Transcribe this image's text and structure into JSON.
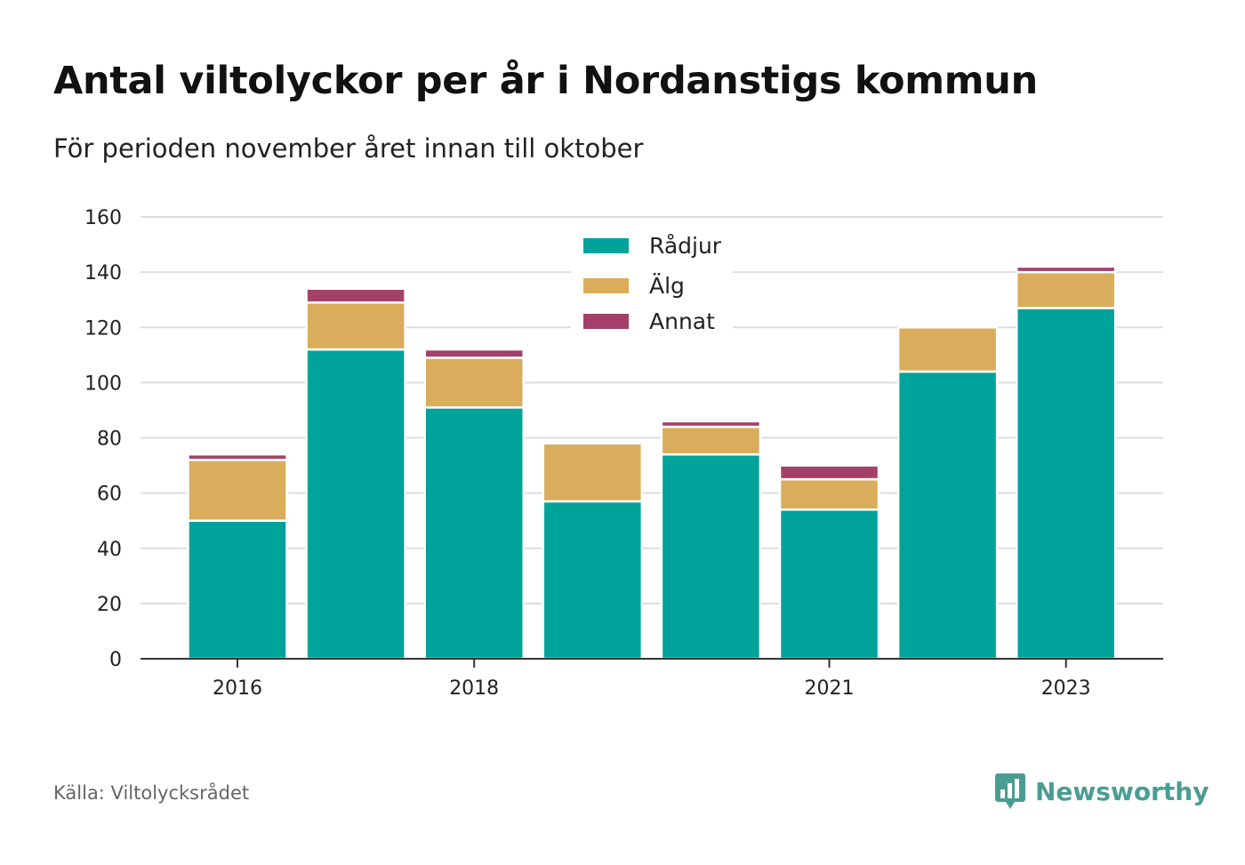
{
  "header": {
    "title": "Antal viltolyckor per år i Nordanstigs kommun",
    "subtitle": "För perioden november året innan till oktober"
  },
  "footer": {
    "source": "Källa: Viltolycksrådet",
    "brand": "Newsworthy",
    "brand_icon": "bar-chart-speech-bubble-icon"
  },
  "colors": {
    "Rådjur": "#00a39a",
    "Älg": "#d9ad5b",
    "Annat": "#a3406a",
    "grid": "#dddddd",
    "axis": "#333333",
    "brand": "#4a9d92"
  },
  "chart_data": {
    "type": "bar",
    "stacked": true,
    "years": [
      2016,
      2017,
      2018,
      2019,
      2020,
      2021,
      2022,
      2023
    ],
    "x_tick_labels": [
      "2016",
      "2018",
      "2021",
      "2023"
    ],
    "x_tick_years": [
      2016,
      2018,
      2021,
      2023
    ],
    "series": [
      {
        "name": "Rådjur",
        "values": [
          50,
          112,
          91,
          57,
          74,
          54,
          104,
          127
        ]
      },
      {
        "name": "Älg",
        "values": [
          22,
          17,
          18,
          21,
          10,
          11,
          16,
          13
        ]
      },
      {
        "name": "Annat",
        "values": [
          2,
          5,
          3,
          0,
          2,
          5,
          0,
          2
        ]
      }
    ],
    "ylim": [
      0,
      160
    ],
    "y_ticks": [
      0,
      20,
      40,
      60,
      80,
      100,
      120,
      140,
      160
    ],
    "grid": true,
    "legend_position": "top-center"
  }
}
